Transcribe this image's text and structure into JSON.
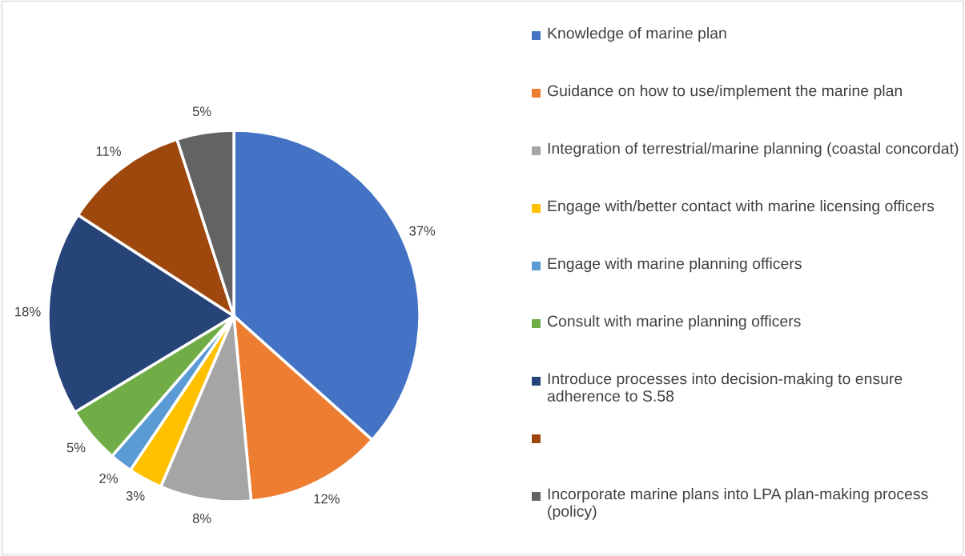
{
  "chart_data": {
    "type": "pie",
    "categories": [
      "Knowledge of marine plan",
      "Guidance on how to use/implement the marine plan",
      "Integration of terrestrial/marine planning (coastal concordat)",
      "Engage with/better contact with marine licensing officers",
      "Engage with marine planning officers",
      "Consult with marine planning officers",
      "Introduce processes into decision-making to ensure adherence to S.58",
      null,
      "Incorporate marine plans into LPA plan-making process (policy)"
    ],
    "values": [
      37,
      12,
      8,
      3,
      2,
      5,
      18,
      11,
      5
    ],
    "colors": [
      "#4472c4",
      "#ed7d31",
      "#a5a5a5",
      "#ffc000",
      "#5b9bd5",
      "#70ad47",
      "#264478",
      "#9e480e",
      "#636363"
    ],
    "value_labels": [
      "37%",
      "12%",
      "8%",
      "3%",
      "2%",
      "5%",
      "18%",
      "11%",
      "5%"
    ],
    "legend": "right"
  }
}
